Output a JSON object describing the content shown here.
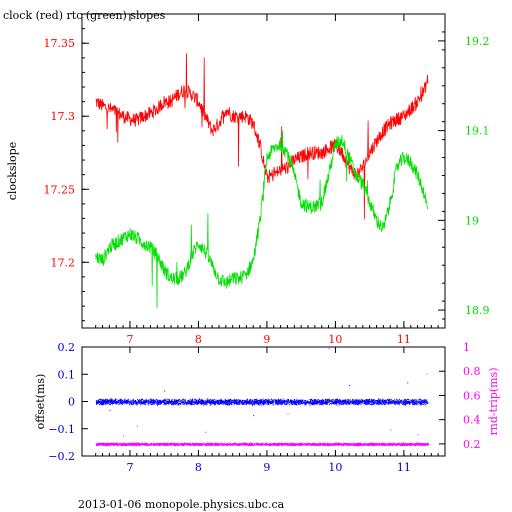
{
  "title": "clock (red) rtc (green) slopes",
  "footer": "2013-01-06  monopole.physics.ubc.ca",
  "colors": {
    "red": "#ff0000",
    "green": "#00e000",
    "blue": "#0000ff",
    "magenta": "#ff00ff",
    "axis_blue": "#0000cc"
  },
  "chart_data": [
    {
      "type": "line",
      "title": "clock (red) rtc (green) slopes",
      "xlabel": "",
      "ylabel": "clockslope",
      "y2label": "",
      "xlim": [
        6.3,
        11.6
      ],
      "ylim": [
        17.155,
        17.37
      ],
      "y2lim": [
        18.88,
        19.23
      ],
      "xticks": [
        7,
        8,
        9,
        10,
        11
      ],
      "yticks": [
        17.2,
        17.25,
        17.3,
        17.35
      ],
      "y2ticks": [
        18.9,
        19,
        19.1,
        19.2
      ],
      "grid": false,
      "series": [
        {
          "name": "clock",
          "axis": "left",
          "color": "#ff0000",
          "x": [
            6.5,
            6.6,
            6.7,
            6.8,
            6.9,
            7.0,
            7.1,
            7.2,
            7.3,
            7.4,
            7.5,
            7.6,
            7.7,
            7.8,
            7.9,
            8.0,
            8.1,
            8.2,
            8.3,
            8.4,
            8.5,
            8.6,
            8.7,
            8.8,
            8.9,
            9.0,
            9.1,
            9.2,
            9.3,
            9.4,
            9.5,
            9.6,
            9.7,
            9.8,
            9.9,
            10.0,
            10.1,
            10.2,
            10.3,
            10.4,
            10.5,
            10.6,
            10.7,
            10.8,
            10.9,
            11.0,
            11.1,
            11.2,
            11.3,
            11.35
          ],
          "y": [
            17.31,
            17.307,
            17.305,
            17.303,
            17.3,
            17.298,
            17.297,
            17.3,
            17.302,
            17.305,
            17.31,
            17.31,
            17.315,
            17.318,
            17.315,
            17.31,
            17.3,
            17.29,
            17.295,
            17.305,
            17.3,
            17.3,
            17.3,
            17.295,
            17.28,
            17.258,
            17.26,
            17.263,
            17.265,
            17.27,
            17.272,
            17.275,
            17.275,
            17.275,
            17.278,
            17.28,
            17.275,
            17.265,
            17.26,
            17.265,
            17.275,
            17.283,
            17.29,
            17.295,
            17.298,
            17.3,
            17.305,
            17.31,
            17.318,
            17.325
          ]
        },
        {
          "name": "rtc",
          "axis": "right",
          "color": "#00e000",
          "x": [
            6.5,
            6.6,
            6.7,
            6.8,
            6.9,
            7.0,
            7.1,
            7.2,
            7.3,
            7.4,
            7.5,
            7.6,
            7.7,
            7.8,
            7.9,
            8.0,
            8.1,
            8.2,
            8.3,
            8.4,
            8.5,
            8.6,
            8.7,
            8.8,
            8.9,
            9.0,
            9.1,
            9.2,
            9.3,
            9.4,
            9.5,
            9.6,
            9.7,
            9.8,
            9.9,
            10.0,
            10.1,
            10.2,
            10.3,
            10.4,
            10.5,
            10.6,
            10.7,
            10.8,
            10.9,
            11.0,
            11.1,
            11.2,
            11.3,
            11.35
          ],
          "y": [
            18.96,
            18.955,
            18.97,
            18.975,
            18.98,
            18.985,
            18.98,
            18.975,
            18.97,
            18.96,
            18.945,
            18.935,
            18.935,
            18.94,
            18.96,
            18.975,
            18.965,
            18.95,
            18.935,
            18.93,
            18.935,
            18.935,
            18.94,
            18.955,
            19.0,
            19.07,
            19.08,
            19.085,
            19.075,
            19.05,
            19.02,
            19.015,
            19.015,
            19.02,
            19.05,
            19.085,
            19.09,
            19.07,
            19.05,
            19.04,
            19.02,
            19.0,
            18.99,
            19.02,
            19.06,
            19.07,
            19.065,
            19.05,
            19.03,
            19.01
          ]
        }
      ]
    },
    {
      "type": "scatter",
      "title": "",
      "xlabel": "",
      "ylabel": "offset(ms)",
      "y2label": "rnd-trip(ms)",
      "xlim": [
        6.3,
        11.6
      ],
      "ylim": [
        -0.2,
        0.2
      ],
      "y2lim": [
        0.1,
        1.0
      ],
      "xticks": [
        7,
        8,
        9,
        10,
        11
      ],
      "yticks": [
        -0.2,
        -0.1,
        0,
        0.1,
        0.2
      ],
      "ytick_labels": [
        "−0.2",
        "−0.1",
        "0",
        "0.1",
        "0.2"
      ],
      "y2ticks": [
        0.2,
        0.4,
        0.6,
        0.8,
        1
      ],
      "y2tick_labels": [
        "0.2",
        "0.4",
        "0.6",
        "0.8",
        "1"
      ],
      "grid": false,
      "series": [
        {
          "name": "offset",
          "axis": "left",
          "color": "#0000ff",
          "x_range": [
            6.5,
            11.35
          ],
          "center": 0.0,
          "spread": 0.012,
          "outliers": [
            [
              7.5,
              0.04
            ],
            [
              8.8,
              -0.05
            ],
            [
              10.2,
              0.06
            ],
            [
              11.05,
              0.07
            ],
            [
              6.7,
              -0.03
            ]
          ]
        },
        {
          "name": "rnd-trip",
          "axis": "right",
          "color": "#ff00ff",
          "x_range": [
            6.5,
            11.35
          ],
          "center": 0.2,
          "spread": 0.012,
          "outliers": [
            [
              9.9,
              0.99
            ],
            [
              7.1,
              0.35
            ],
            [
              8.1,
              0.3
            ],
            [
              9.3,
              0.45
            ],
            [
              10.8,
              0.32
            ],
            [
              11.2,
              0.28
            ],
            [
              11.33,
              0.78
            ],
            [
              6.9,
              0.27
            ]
          ]
        }
      ]
    }
  ]
}
